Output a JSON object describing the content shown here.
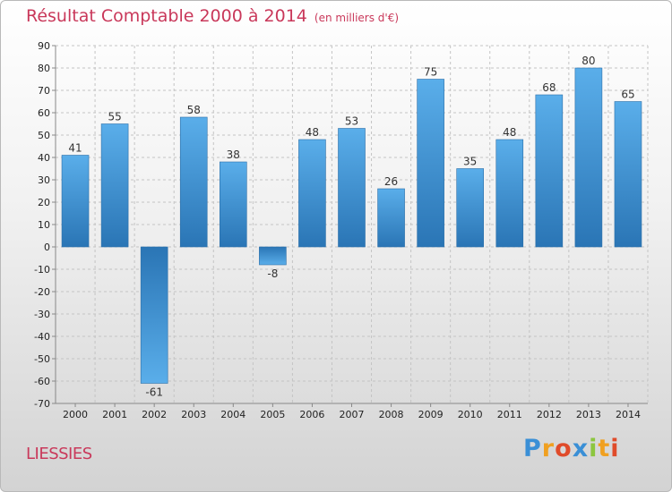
{
  "header": {
    "title": "Résultat Comptable 2000 à 2014",
    "subtitle": "(en milliers d'€)"
  },
  "commune": "LIESSIES",
  "brand": {
    "letters": [
      "P",
      "r",
      "o",
      "x",
      "i",
      "t",
      "i"
    ],
    "colors": [
      "#3a8fd6",
      "#f0a020",
      "#e04b2a",
      "#3a8fd6",
      "#8cc63f",
      "#f0a020",
      "#e04b2a"
    ]
  },
  "chart_data": {
    "type": "bar",
    "title": "Résultat Comptable 2000 à 2014",
    "subtitle": "(en milliers d'€)",
    "categories": [
      "2000",
      "2001",
      "2002",
      "2003",
      "2004",
      "2005",
      "2006",
      "2007",
      "2008",
      "2009",
      "2010",
      "2011",
      "2012",
      "2013",
      "2014"
    ],
    "values": [
      41,
      55,
      -61,
      58,
      38,
      -8,
      48,
      53,
      26,
      75,
      35,
      48,
      68,
      80,
      65
    ],
    "ylim": [
      -70,
      90
    ],
    "yticks": [
      90,
      80,
      70,
      60,
      50,
      40,
      30,
      20,
      10,
      0,
      -10,
      -20,
      -30,
      -40,
      -50,
      -60,
      -70
    ],
    "xlabel": "",
    "ylabel": "",
    "grid": true,
    "bar_color": "#3f8fd2"
  }
}
